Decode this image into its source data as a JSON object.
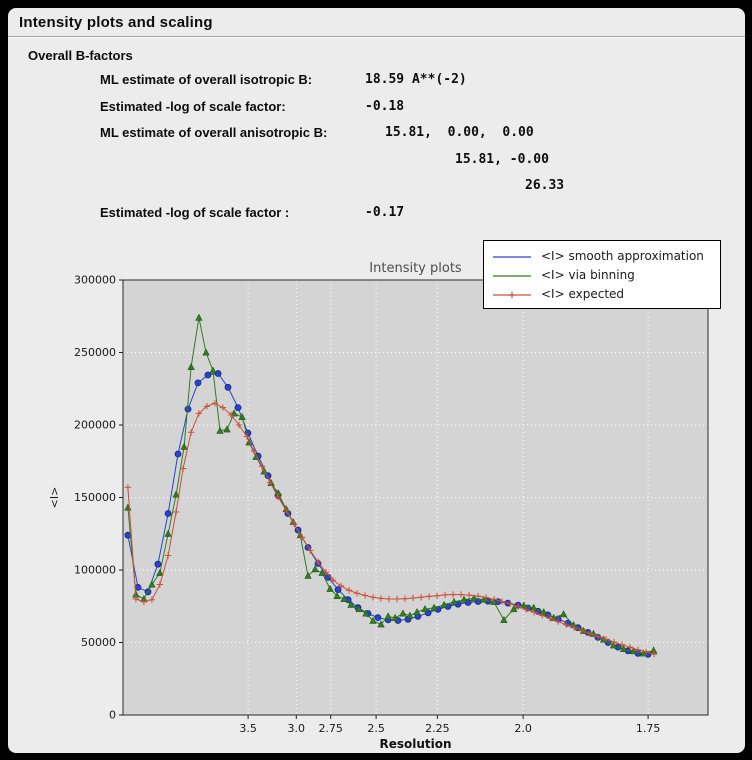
{
  "window": {
    "title": "Intensity plots and scaling"
  },
  "bfactors": {
    "heading": "Overall B-factors",
    "rows": [
      {
        "label": "ML estimate of overall isotropic B:",
        "value": "18.59 A**(-2)"
      },
      {
        "label": "Estimated -log of scale factor:",
        "value": "-0.18"
      },
      {
        "label": "ML estimate of overall anisotropic B:",
        "value": "15.81,  0.00,  0.00"
      },
      {
        "label": "",
        "value": "15.81, -0.00"
      },
      {
        "label": "",
        "value": "26.33"
      },
      {
        "label": "Estimated -log of scale factor :",
        "value": "-0.17"
      }
    ]
  },
  "chart_data": {
    "type": "line",
    "title": "Intensity plots",
    "xlabel": "Resolution",
    "ylabel": "<I>",
    "x_units": "1/d^2, tick labels are d in Angstrom",
    "xlim": [
      0.005,
      0.3632
    ],
    "ylim": [
      0,
      300000
    ],
    "grid": true,
    "legend_position": "upper right",
    "plot_bg": "#d4d4d4",
    "grid_color": "#ffffff",
    "x_ticks": [
      {
        "v": 0.0816,
        "label": "3.5"
      },
      {
        "v": 0.1111,
        "label": "3.0"
      },
      {
        "v": 0.1322,
        "label": "2.75"
      },
      {
        "v": 0.16,
        "label": "2.5"
      },
      {
        "v": 0.1975,
        "label": "2.25"
      },
      {
        "v": 0.25,
        "label": "2.0"
      },
      {
        "v": 0.3265,
        "label": "1.75"
      }
    ],
    "y_ticks": [
      0,
      50000,
      100000,
      150000,
      200000,
      250000,
      300000
    ],
    "series": [
      {
        "id": "smooth",
        "name": "<I> smooth approximation",
        "marker": "circle",
        "color": "#2743d0",
        "edge": "#18277e",
        "points": [
          [
            0.008,
            124000
          ],
          [
            0.0142,
            88000
          ],
          [
            0.0203,
            85000
          ],
          [
            0.0264,
            104000
          ],
          [
            0.0326,
            139000
          ],
          [
            0.0387,
            180000
          ],
          [
            0.0448,
            211000
          ],
          [
            0.0509,
            229000
          ],
          [
            0.057,
            234500
          ],
          [
            0.0632,
            235500
          ],
          [
            0.0693,
            226000
          ],
          [
            0.0754,
            212000
          ],
          [
            0.0815,
            194500
          ],
          [
            0.0877,
            178500
          ],
          [
            0.0938,
            165000
          ],
          [
            0.0999,
            151500
          ],
          [
            0.106,
            139000
          ],
          [
            0.1122,
            127500
          ],
          [
            0.1183,
            115500
          ],
          [
            0.1244,
            104500
          ],
          [
            0.1305,
            95000
          ],
          [
            0.1367,
            86500
          ],
          [
            0.1428,
            79500
          ],
          [
            0.1489,
            74000
          ],
          [
            0.155,
            70000
          ],
          [
            0.1611,
            67200
          ],
          [
            0.1673,
            65600
          ],
          [
            0.1734,
            65200
          ],
          [
            0.1795,
            66000
          ],
          [
            0.1856,
            68000
          ],
          [
            0.1918,
            70500
          ],
          [
            0.1979,
            72800
          ],
          [
            0.204,
            74800
          ],
          [
            0.2101,
            76400
          ],
          [
            0.2163,
            77600
          ],
          [
            0.2224,
            78300
          ],
          [
            0.2285,
            78500
          ],
          [
            0.2346,
            78200
          ],
          [
            0.2407,
            77200
          ],
          [
            0.2469,
            75800
          ],
          [
            0.253,
            73800
          ],
          [
            0.2591,
            71500
          ],
          [
            0.2652,
            69000
          ],
          [
            0.2714,
            66200
          ],
          [
            0.2775,
            63300
          ],
          [
            0.2836,
            60200
          ],
          [
            0.2897,
            57000
          ],
          [
            0.2958,
            53500
          ],
          [
            0.302,
            50000
          ],
          [
            0.3081,
            46800
          ],
          [
            0.3142,
            44300
          ],
          [
            0.3203,
            42500
          ],
          [
            0.3265,
            41800
          ]
        ]
      },
      {
        "id": "binning",
        "name": "<I> via binning",
        "marker": "triangle",
        "color": "#2f7d1f",
        "edge": "#1e5214",
        "points": [
          [
            0.008,
            143000
          ],
          [
            0.0129,
            83000
          ],
          [
            0.0178,
            80000
          ],
          [
            0.0227,
            90000
          ],
          [
            0.0276,
            98000
          ],
          [
            0.0326,
            125000
          ],
          [
            0.0375,
            152000
          ],
          [
            0.0424,
            185000
          ],
          [
            0.0467,
            240000
          ],
          [
            0.0515,
            274000
          ],
          [
            0.0558,
            250000
          ],
          [
            0.0601,
            237500
          ],
          [
            0.0644,
            196000
          ],
          [
            0.0687,
            197000
          ],
          [
            0.073,
            208000
          ],
          [
            0.0779,
            205500
          ],
          [
            0.0822,
            188000
          ],
          [
            0.0865,
            178000
          ],
          [
            0.0914,
            168000
          ],
          [
            0.0957,
            160000
          ],
          [
            0.1,
            153000
          ],
          [
            0.1049,
            142000
          ],
          [
            0.1092,
            133000
          ],
          [
            0.1135,
            124000
          ],
          [
            0.1183,
            96000
          ],
          [
            0.1226,
            100500
          ],
          [
            0.1269,
            98000
          ],
          [
            0.1318,
            87000
          ],
          [
            0.1361,
            82000
          ],
          [
            0.1404,
            80000
          ],
          [
            0.1446,
            76000
          ],
          [
            0.1495,
            73000
          ],
          [
            0.1538,
            70000
          ],
          [
            0.1581,
            65000
          ],
          [
            0.163,
            62500
          ],
          [
            0.1673,
            68000
          ],
          [
            0.1716,
            67000
          ],
          [
            0.1764,
            70000
          ],
          [
            0.1807,
            68500
          ],
          [
            0.185,
            71000
          ],
          [
            0.1899,
            73000
          ],
          [
            0.1955,
            74000
          ],
          [
            0.2016,
            76000
          ],
          [
            0.2077,
            78000
          ],
          [
            0.2138,
            79500
          ],
          [
            0.2199,
            80500
          ],
          [
            0.226,
            79500
          ],
          [
            0.2321,
            78000
          ],
          [
            0.2382,
            65500
          ],
          [
            0.2443,
            73000
          ],
          [
            0.2504,
            75500
          ],
          [
            0.2565,
            74000
          ],
          [
            0.2626,
            71000
          ],
          [
            0.2687,
            67000
          ],
          [
            0.2748,
            69500
          ],
          [
            0.2809,
            62000
          ],
          [
            0.287,
            58000
          ],
          [
            0.2931,
            56000
          ],
          [
            0.2993,
            52000
          ],
          [
            0.3054,
            48000
          ],
          [
            0.3115,
            45500
          ],
          [
            0.3176,
            44000
          ],
          [
            0.3237,
            42500
          ],
          [
            0.3299,
            44500
          ]
        ]
      },
      {
        "id": "expected",
        "name": "<I> expected",
        "marker": "plus",
        "color": "#cc4f38",
        "edge": "#cc4f38",
        "points": [
          [
            0.008,
            157000
          ],
          [
            0.0129,
            80000
          ],
          [
            0.0178,
            78000
          ],
          [
            0.0227,
            79500
          ],
          [
            0.0276,
            90000
          ],
          [
            0.0326,
            110000
          ],
          [
            0.0375,
            140000
          ],
          [
            0.0418,
            170000
          ],
          [
            0.0467,
            195000
          ],
          [
            0.0515,
            208000
          ],
          [
            0.0564,
            213000
          ],
          [
            0.0613,
            215000
          ],
          [
            0.0662,
            212000
          ],
          [
            0.0711,
            207000
          ],
          [
            0.076,
            200000
          ],
          [
            0.0809,
            192000
          ],
          [
            0.0852,
            182000
          ],
          [
            0.0901,
            171500
          ],
          [
            0.095,
            160500
          ],
          [
            0.0999,
            150500
          ],
          [
            0.1049,
            141000
          ],
          [
            0.1098,
            131500
          ],
          [
            0.1147,
            122500
          ],
          [
            0.1196,
            113500
          ],
          [
            0.1244,
            105500
          ],
          [
            0.1293,
            98500
          ],
          [
            0.1336,
            93000
          ],
          [
            0.1385,
            89000
          ],
          [
            0.1434,
            86000
          ],
          [
            0.1483,
            84000
          ],
          [
            0.1532,
            82500
          ],
          [
            0.1581,
            81200
          ],
          [
            0.163,
            80400
          ],
          [
            0.1679,
            80000
          ],
          [
            0.1728,
            80000
          ],
          [
            0.1777,
            80200
          ],
          [
            0.1826,
            80700
          ],
          [
            0.1875,
            81200
          ],
          [
            0.1924,
            81800
          ],
          [
            0.1973,
            82300
          ],
          [
            0.2022,
            82800
          ],
          [
            0.2071,
            83000
          ],
          [
            0.212,
            83000
          ],
          [
            0.2169,
            82700
          ],
          [
            0.2224,
            82000
          ],
          [
            0.2273,
            81000
          ],
          [
            0.2322,
            79800
          ],
          [
            0.2371,
            78300
          ],
          [
            0.242,
            76700
          ],
          [
            0.2469,
            74800
          ],
          [
            0.2518,
            72800
          ],
          [
            0.2567,
            70800
          ],
          [
            0.2616,
            68700
          ],
          [
            0.2665,
            66600
          ],
          [
            0.2714,
            64400
          ],
          [
            0.2763,
            62300
          ],
          [
            0.2812,
            60200
          ],
          [
            0.2861,
            58100
          ],
          [
            0.291,
            56100
          ],
          [
            0.2959,
            54100
          ],
          [
            0.3008,
            52200
          ],
          [
            0.3057,
            50300
          ],
          [
            0.3106,
            48500
          ],
          [
            0.3155,
            46700
          ],
          [
            0.3204,
            45000
          ],
          [
            0.3253,
            43500
          ],
          [
            0.3302,
            42000
          ]
        ]
      }
    ]
  }
}
